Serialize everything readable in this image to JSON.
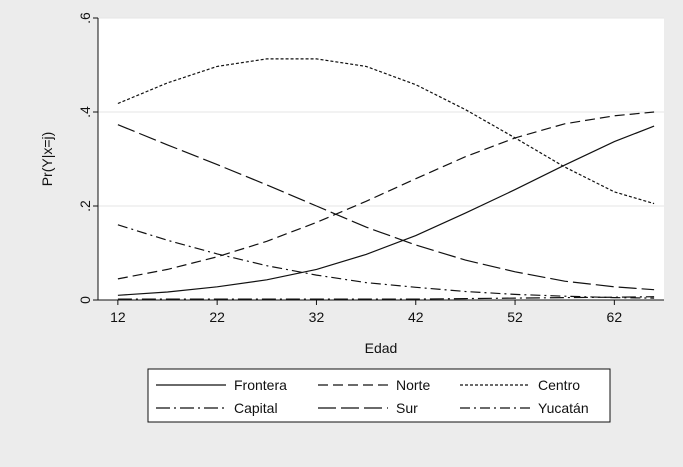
{
  "chart_data": {
    "type": "line",
    "title": "",
    "xlabel": "Edad",
    "ylabel": "Pr(Y|x=j)",
    "xlim": [
      10,
      67
    ],
    "ylim": [
      0,
      0.6
    ],
    "x_ticks": [
      12,
      22,
      32,
      42,
      52,
      62
    ],
    "x_tick_labels": [
      "12",
      "22",
      "32",
      "42",
      "52",
      "62"
    ],
    "y_ticks": [
      0,
      0.2,
      0.4,
      0.6
    ],
    "y_tick_labels": [
      "0",
      ".2",
      ".4",
      ".6"
    ],
    "grid": true,
    "legend_position": "bottom",
    "x": [
      12,
      17,
      22,
      27,
      32,
      37,
      42,
      47,
      52,
      57,
      62,
      66
    ],
    "series": [
      {
        "name": "Frontera",
        "dash": "solid",
        "values": [
          0.01,
          0.017,
          0.028,
          0.043,
          0.065,
          0.097,
          0.137,
          0.185,
          0.235,
          0.287,
          0.337,
          0.37
        ]
      },
      {
        "name": "Norte",
        "dash": "long-dash",
        "values": [
          0.045,
          0.065,
          0.092,
          0.125,
          0.165,
          0.21,
          0.258,
          0.305,
          0.345,
          0.375,
          0.392,
          0.4
        ]
      },
      {
        "name": "Centro",
        "dash": "short-dash",
        "values": [
          0.418,
          0.462,
          0.497,
          0.513,
          0.513,
          0.497,
          0.458,
          0.405,
          0.345,
          0.283,
          0.23,
          0.205
        ]
      },
      {
        "name": "Capital",
        "dash": "dash-dot",
        "values": [
          0.002,
          0.002,
          0.002,
          0.002,
          0.002,
          0.002,
          0.002,
          0.003,
          0.004,
          0.005,
          0.006,
          0.007
        ]
      },
      {
        "name": "Sur",
        "dash": "very-long-dash",
        "values": [
          0.373,
          0.33,
          0.288,
          0.245,
          0.2,
          0.155,
          0.117,
          0.085,
          0.06,
          0.04,
          0.028,
          0.022
        ]
      },
      {
        "name": "Yucatán",
        "dash": "long-dash-dot",
        "values": [
          0.16,
          0.127,
          0.098,
          0.073,
          0.053,
          0.037,
          0.027,
          0.018,
          0.012,
          0.008,
          0.005,
          0.004
        ]
      }
    ]
  }
}
